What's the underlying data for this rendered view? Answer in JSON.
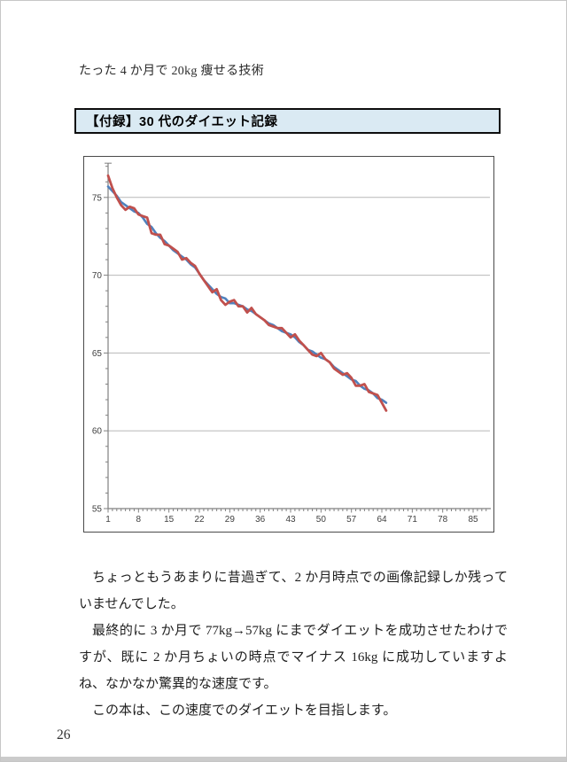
{
  "page": {
    "running_header": "たった 4 か月で 20kg 痩せる技術",
    "page_number": "26"
  },
  "appendix_box": {
    "title": "【付録】30 代のダイエット記録",
    "fill_color": "#daeaf3",
    "border_color": "#0d0d0d"
  },
  "paragraphs": [
    "ちょっともうあまりに昔過ぎて、2 か月時点での画像記録しか残っていませんでした。",
    "最終的に 3 か月で 77kg→57kg にまでダイエットを成功させたわけですが、既に 2 か月ちょいの時点でマイナス 16kg に成功していますよね、なかなか驚異的な速度です。",
    "この本は、この速度でのダイエットを目指します。"
  ],
  "chart_data": {
    "type": "line",
    "title": "",
    "xlabel": "",
    "ylabel": "",
    "x_start": 1,
    "x_step": 1,
    "xticks": [
      1,
      8,
      15,
      22,
      29,
      36,
      43,
      50,
      57,
      64,
      71,
      78,
      85
    ],
    "yticks": [
      55,
      60,
      65,
      70,
      75
    ],
    "xlim": [
      1,
      88
    ],
    "ylim": [
      55,
      77.2
    ],
    "y_minor_unit": 1,
    "grid": "horizontal-major",
    "legend": "none",
    "series": [
      {
        "name": "blue-smoothed-line",
        "color": "#4f81bd",
        "width": 2.6,
        "values": [
          75.7,
          75.4,
          75.1,
          74.7,
          74.5,
          74.3,
          74.1,
          74.0,
          73.7,
          73.3,
          73.1,
          72.7,
          72.4,
          72.2,
          71.9,
          71.6,
          71.4,
          71.2,
          71.0,
          70.7,
          70.5,
          70.1,
          69.7,
          69.4,
          69.1,
          68.8,
          68.6,
          68.5,
          68.2,
          68.2,
          68.1,
          68.0,
          67.8,
          67.7,
          67.5,
          67.3,
          67.1,
          66.9,
          66.8,
          66.6,
          66.4,
          66.3,
          66.2,
          66.0,
          65.7,
          65.5,
          65.2,
          65.1,
          64.9,
          64.7,
          64.6,
          64.4,
          64.1,
          63.9,
          63.7,
          63.5,
          63.3,
          63.2,
          62.9,
          62.7,
          62.6,
          62.4,
          62.1,
          62.0,
          61.8
        ]
      },
      {
        "name": "red-daily-line",
        "color": "#c0504d",
        "width": 2.8,
        "values": [
          76.4,
          75.6,
          75.0,
          74.5,
          74.2,
          74.4,
          74.3,
          73.9,
          73.8,
          73.7,
          72.7,
          72.6,
          72.6,
          72.0,
          71.9,
          71.7,
          71.5,
          71.0,
          71.1,
          70.8,
          70.6,
          70.1,
          69.7,
          69.3,
          68.9,
          69.1,
          68.4,
          68.1,
          68.3,
          68.4,
          68.0,
          68.0,
          67.6,
          67.9,
          67.5,
          67.3,
          67.1,
          66.8,
          66.7,
          66.6,
          66.6,
          66.3,
          66.0,
          66.2,
          65.8,
          65.5,
          65.2,
          64.9,
          64.8,
          65.0,
          64.6,
          64.4,
          64.0,
          63.8,
          63.6,
          63.7,
          63.4,
          62.9,
          62.9,
          63.0,
          62.5,
          62.4,
          62.3,
          61.8,
          61.3
        ]
      }
    ],
    "colors": {
      "grid": "#b8b8b8",
      "axis": "#808080",
      "tick_label": "#3f3f3f",
      "plot_background": "#ffffff",
      "frame_border": "#4a4a4a"
    }
  }
}
